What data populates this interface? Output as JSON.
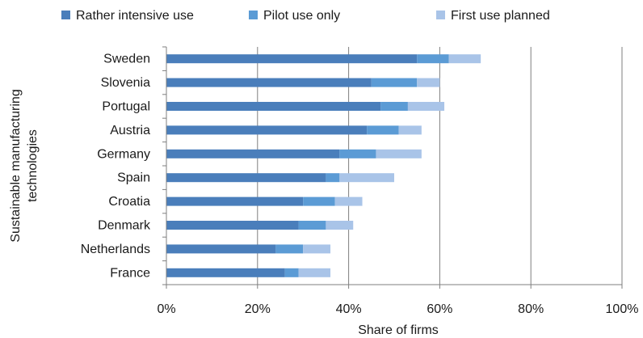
{
  "chart_data": {
    "type": "bar",
    "orientation": "horizontal",
    "stacked": true,
    "categories": [
      "Sweden",
      "Slovenia",
      "Portugal",
      "Austria",
      "Germany",
      "Spain",
      "Croatia",
      "Denmark",
      "Netherlands",
      "France"
    ],
    "series": [
      {
        "name": "Rather intensive use",
        "color": "#4a7ebb",
        "values": [
          55,
          45,
          47,
          44,
          38,
          35,
          30,
          29,
          24,
          26
        ]
      },
      {
        "name": "Pilot use only",
        "color": "#5b9bd5",
        "values": [
          7,
          10,
          6,
          7,
          8,
          3,
          7,
          6,
          6,
          3
        ]
      },
      {
        "name": "First use planned",
        "color": "#a9c4e8",
        "values": [
          7,
          5,
          8,
          5,
          10,
          12,
          6,
          6,
          6,
          7
        ]
      }
    ],
    "xlim": [
      0,
      100
    ],
    "x_ticks": [
      "0%",
      "20%",
      "40%",
      "60%",
      "80%",
      "100%"
    ],
    "x_tick_values": [
      0,
      20,
      40,
      60,
      80,
      100
    ],
    "xlabel": "Share of firms",
    "ylabel": "Sustainable manufacturing technologies",
    "legend_position": "top",
    "grid": "vertical"
  }
}
